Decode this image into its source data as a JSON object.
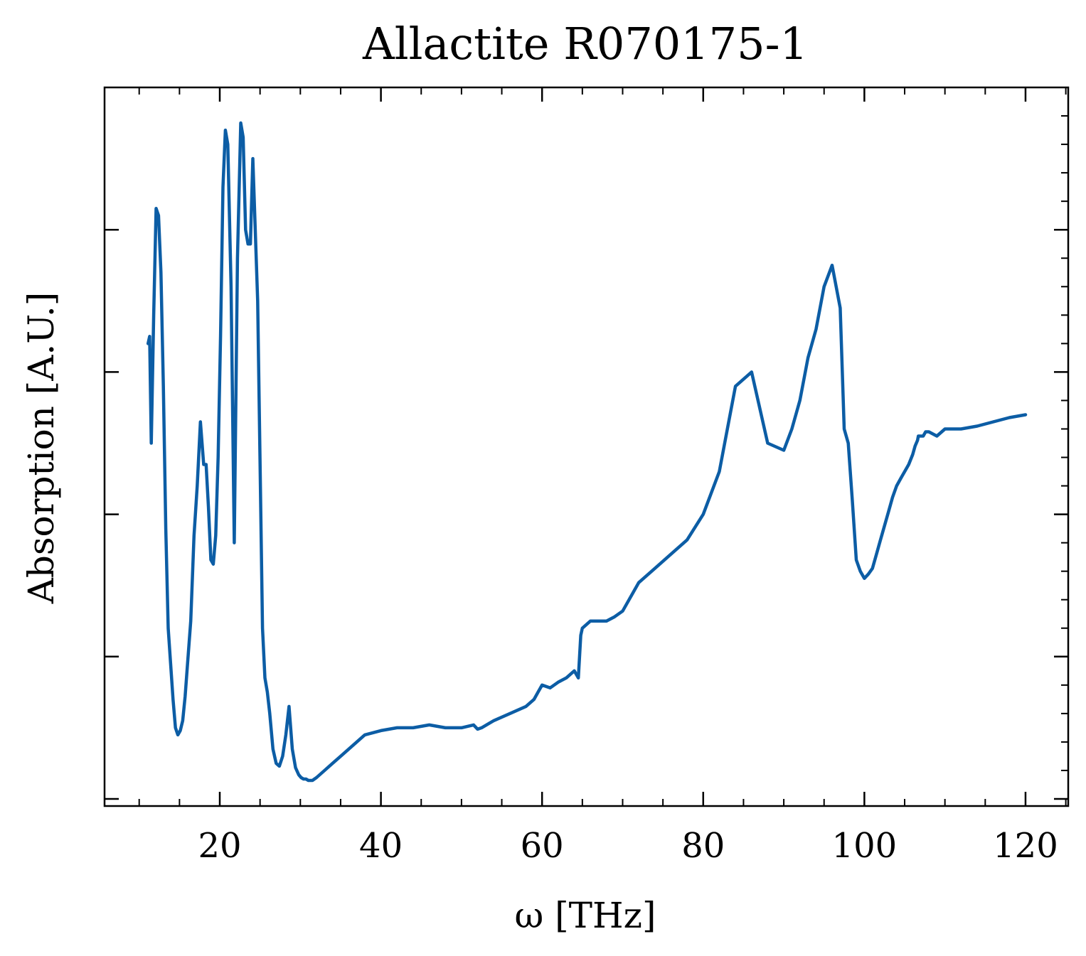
{
  "chart_data": {
    "type": "line",
    "title": "Allactite R070175-1",
    "xlabel": "ω [THz]",
    "ylabel": "Absorption [A.U.]",
    "xlim": [
      5.7,
      125.3
    ],
    "ylim": [
      -0.05,
      5.0
    ],
    "x_ticks": [
      20,
      40,
      60,
      80,
      100,
      120
    ],
    "x_tick_labels": [
      "20",
      "40",
      "60",
      "80",
      "100",
      "120"
    ],
    "y_ticks": [
      0,
      1,
      2,
      3,
      4
    ],
    "y_tick_labels_visible": false,
    "grid": false,
    "legend": "none",
    "series": [
      {
        "color": "#0c5da5",
        "x": [
          11.1,
          11.3,
          11.5,
          11.8,
          12.1,
          12.4,
          12.7,
          13.0,
          13.3,
          13.6,
          13.9,
          14.2,
          14.5,
          14.8,
          15.1,
          15.4,
          15.7,
          16.0,
          16.4,
          16.8,
          17.2,
          17.6,
          18.0,
          18.3,
          18.6,
          18.9,
          19.2,
          19.5,
          19.8,
          20.1,
          20.4,
          20.7,
          21.0,
          21.4,
          21.8,
          22.2,
          22.6,
          22.9,
          23.2,
          23.5,
          23.8,
          24.1,
          24.4,
          24.7,
          25.0,
          25.3,
          25.6,
          25.9,
          26.2,
          26.6,
          27.0,
          27.4,
          27.8,
          28.2,
          28.6,
          29.0,
          29.4,
          29.8,
          30.1,
          30.4,
          30.7,
          31.0,
          31.5,
          32.0,
          33.0,
          34.0,
          35.0,
          36.0,
          37.0,
          38.0,
          40.0,
          42.0,
          44.0,
          46.0,
          48.0,
          50.0,
          51.5,
          52.0,
          52.5,
          54.0,
          56.0,
          58.0,
          59.0,
          59.5,
          60.0,
          61.0,
          62.0,
          63.0,
          64.0,
          64.5,
          64.8,
          65.0,
          66.0,
          68.0,
          69.0,
          70.0,
          71.0,
          72.0,
          74.0,
          76.0,
          78.0,
          80.0,
          82.0,
          84.0,
          86.0,
          88.0,
          90.0,
          91.0,
          92.0,
          93.0,
          94.0,
          95.0,
          96.0,
          97.0,
          97.5,
          98.0,
          98.5,
          99.0,
          99.5,
          100.0,
          100.5,
          101.0,
          101.5,
          102.0,
          102.5,
          103.0,
          103.5,
          104.0,
          104.5,
          105.0,
          105.5,
          106.0,
          106.3,
          106.6,
          106.7,
          107.0,
          107.3,
          107.6,
          108.0,
          109.0,
          110.0,
          112.0,
          114.0,
          116.0,
          118.0,
          120.0
        ],
        "y": [
          3.2,
          3.25,
          2.5,
          3.4,
          4.15,
          4.1,
          3.7,
          2.9,
          1.9,
          1.2,
          0.95,
          0.7,
          0.5,
          0.45,
          0.48,
          0.55,
          0.72,
          0.95,
          1.25,
          1.85,
          2.2,
          2.65,
          2.35,
          2.35,
          2.05,
          1.68,
          1.65,
          1.85,
          2.4,
          3.25,
          4.3,
          4.7,
          4.6,
          3.6,
          1.8,
          3.8,
          4.75,
          4.65,
          4.0,
          3.9,
          3.9,
          4.5,
          4.0,
          3.5,
          2.35,
          1.2,
          0.85,
          0.75,
          0.6,
          0.35,
          0.25,
          0.23,
          0.3,
          0.45,
          0.65,
          0.35,
          0.22,
          0.17,
          0.15,
          0.14,
          0.14,
          0.13,
          0.13,
          0.15,
          0.2,
          0.25,
          0.3,
          0.35,
          0.4,
          0.45,
          0.48,
          0.5,
          0.5,
          0.52,
          0.5,
          0.5,
          0.52,
          0.49,
          0.5,
          0.55,
          0.6,
          0.65,
          0.7,
          0.75,
          0.8,
          0.78,
          0.82,
          0.85,
          0.9,
          0.85,
          1.15,
          1.2,
          1.25,
          1.25,
          1.28,
          1.32,
          1.42,
          1.52,
          1.62,
          1.72,
          1.82,
          2.0,
          2.3,
          2.9,
          3.0,
          2.5,
          2.45,
          2.6,
          2.8,
          3.1,
          3.3,
          3.6,
          3.75,
          3.45,
          2.6,
          2.5,
          2.1,
          1.68,
          1.6,
          1.55,
          1.58,
          1.62,
          1.72,
          1.82,
          1.92,
          2.02,
          2.12,
          2.2,
          2.25,
          2.3,
          2.35,
          2.42,
          2.48,
          2.52,
          2.55,
          2.55,
          2.55,
          2.58,
          2.58,
          2.55,
          2.6,
          2.6,
          2.62,
          2.65,
          2.68,
          2.7
        ]
      }
    ]
  }
}
